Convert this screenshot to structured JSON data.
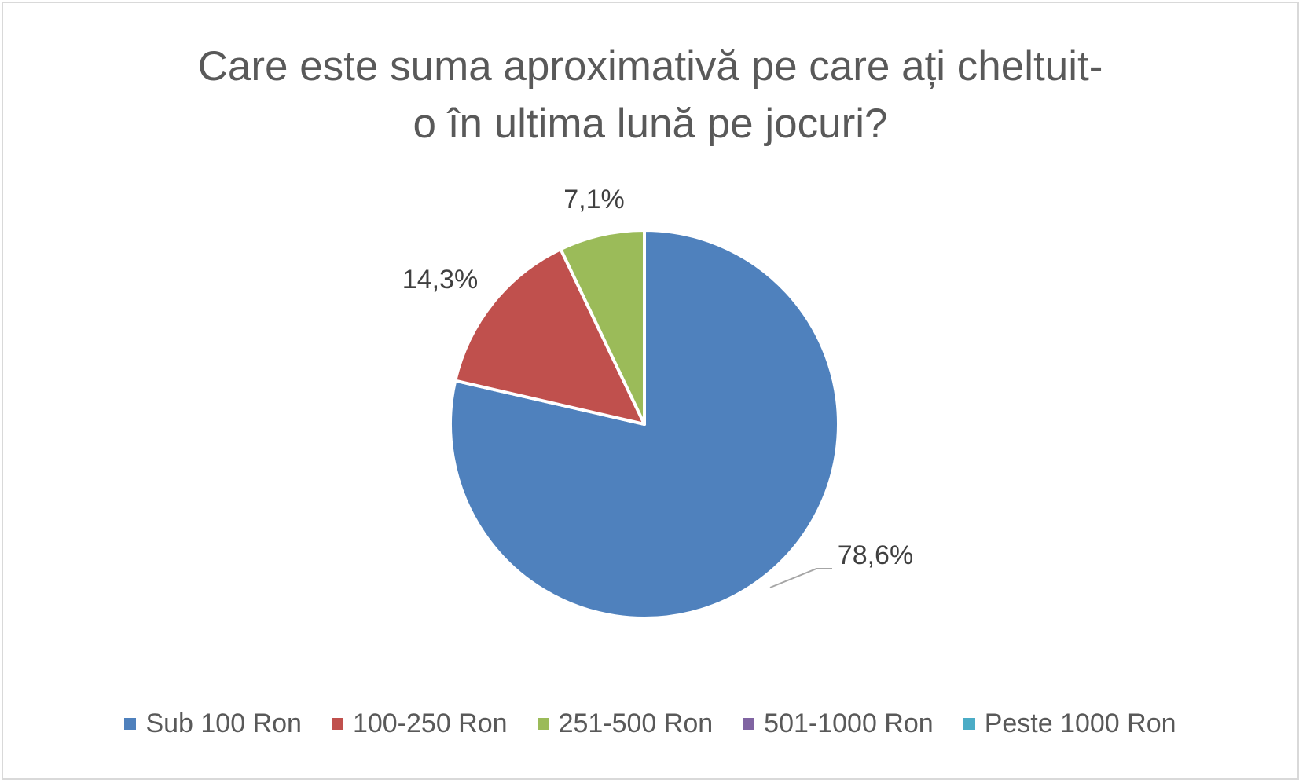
{
  "chart_data": {
    "type": "pie",
    "title": [
      "Care este suma aproximativă pe care ați cheltuit-",
      "o în ultima lună pe jocuri?"
    ],
    "categories": [
      "Sub 100 Ron",
      "100-250 Ron",
      "251-500 Ron",
      "501-1000 Ron",
      "Peste 1000 Ron"
    ],
    "values": [
      78.6,
      14.3,
      7.1,
      0,
      0
    ],
    "data_labels": [
      "78,6%",
      "14,3%",
      "7,1%",
      "",
      ""
    ],
    "colors": [
      "#4f81bd",
      "#c0504d",
      "#9bbb59",
      "#8064a2",
      "#4bacc6"
    ],
    "legend_position": "bottom"
  }
}
